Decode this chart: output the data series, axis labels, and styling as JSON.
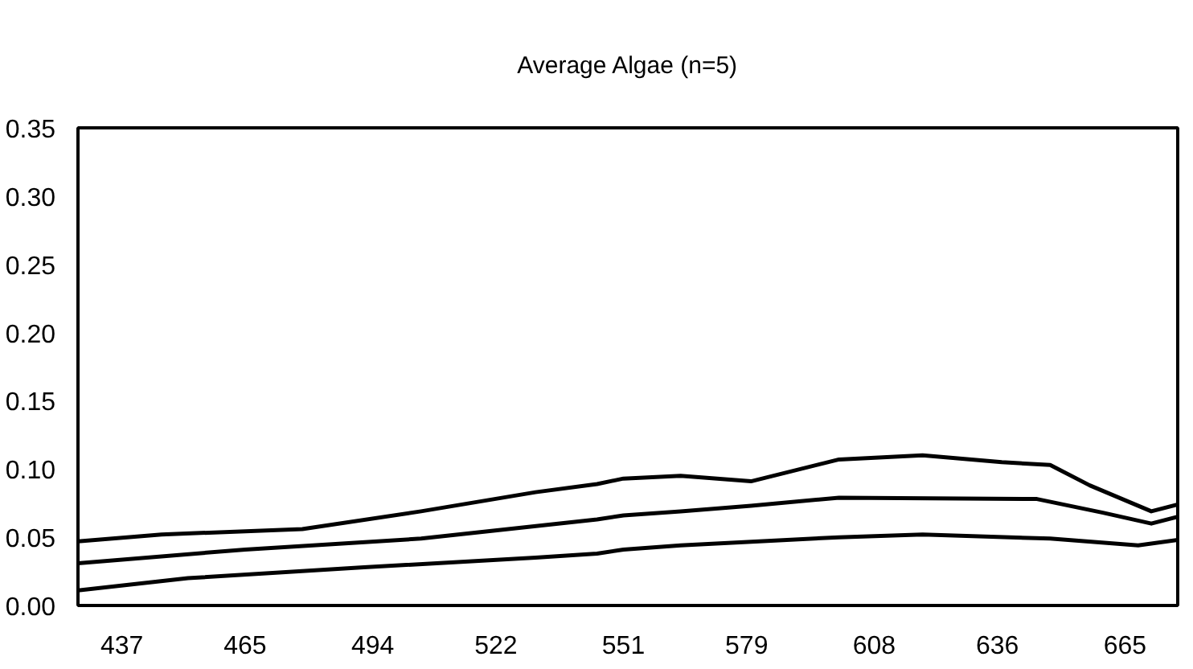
{
  "chart_data": {
    "type": "line",
    "title": "Average Algae (n=5)",
    "xlim": [
      427,
      677
    ],
    "xticks": [
      437,
      465,
      494,
      522,
      551,
      579,
      608,
      636,
      665
    ],
    "ylim": [
      0,
      0.35
    ],
    "yticks": [
      {
        "value": 0,
        "label": "0.00"
      },
      {
        "value": 0.05,
        "label": "0.05"
      },
      {
        "value": 0.1,
        "label": "0.10"
      },
      {
        "value": 0.15,
        "label": "0.15"
      },
      {
        "value": 0.2,
        "label": "0.20"
      },
      {
        "value": 0.25,
        "label": "0.25"
      },
      {
        "value": 0.3,
        "label": "0.30"
      },
      {
        "value": 0.35,
        "label": "0.35"
      }
    ],
    "line_style": "solid",
    "series": [
      {
        "color": "#000000",
        "x": [
          427,
          446,
          478,
          505,
          531,
          545,
          551,
          564,
          580,
          600,
          619,
          637,
          648,
          657,
          671,
          677
        ],
        "values": [
          0.047,
          0.052,
          0.056,
          0.069,
          0.083,
          0.089,
          0.093,
          0.095,
          0.091,
          0.107,
          0.11,
          0.105,
          0.103,
          0.088,
          0.069,
          0.074
        ]
      },
      {
        "color": "#000000",
        "x": [
          427,
          465,
          505,
          545,
          551,
          564,
          580,
          600,
          645,
          660,
          671,
          677
        ],
        "values": [
          0.031,
          0.041,
          0.049,
          0.063,
          0.066,
          0.069,
          0.073,
          0.079,
          0.078,
          0.068,
          0.06,
          0.065
        ]
      },
      {
        "color": "#000000",
        "x": [
          427,
          452,
          492,
          531,
          545,
          551,
          564,
          600,
          619,
          648,
          668,
          677
        ],
        "values": [
          0.011,
          0.02,
          0.028,
          0.035,
          0.038,
          0.041,
          0.044,
          0.05,
          0.052,
          0.049,
          0.044,
          0.048
        ]
      }
    ]
  }
}
